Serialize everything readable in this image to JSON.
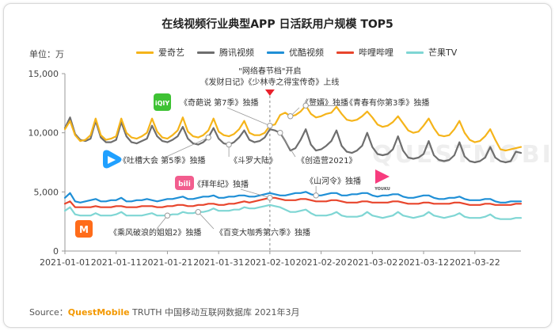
{
  "chart_data": {
    "type": "line",
    "title": "在线视频行业典型APP 日活跃用户规模 TOP5",
    "unit_label": "单位：万",
    "ylim": [
      0,
      15000
    ],
    "y_ticks": [
      "15,000",
      "10,000",
      "5,000",
      "0"
    ],
    "x_ticks": [
      "2021-01-01",
      "2021-01-11",
      "2021-01-21",
      "2021-01-31",
      "2021-02-10",
      "2021-02-20",
      "2021-03-02",
      "2021-03-12",
      "2021-03-22"
    ],
    "x_start": "2021-01-01",
    "x_end": "2021-03-31",
    "grid": false,
    "legend_position": "top",
    "series": [
      {
        "name": "爱奇艺",
        "color": "#f5b41a",
        "values": [
          10300,
          11000,
          9800,
          9300,
          9400,
          9800,
          11200,
          9800,
          9400,
          9500,
          9700,
          11200,
          10000,
          9600,
          9500,
          9700,
          10000,
          11200,
          10100,
          9600,
          9500,
          9800,
          10200,
          11300,
          10100,
          9700,
          9600,
          9800,
          10200,
          11200,
          10100,
          9800,
          9700,
          9900,
          10300,
          11000,
          10000,
          9800,
          9800,
          10000,
          10600,
          10700,
          11500,
          11700,
          11400,
          11500,
          11800,
          12300,
          11600,
          11300,
          11400,
          11600,
          11700,
          12200,
          11600,
          11100,
          11000,
          11100,
          11400,
          11800,
          11300,
          10700,
          10500,
          10600,
          10900,
          11400,
          10800,
          10200,
          10000,
          10100,
          10600,
          11200,
          10400,
          9800,
          9700,
          9800,
          10300,
          11000,
          10000,
          9400,
          9200,
          9300,
          9700,
          10300,
          9400,
          8600,
          8500,
          8600,
          8700,
          8800
        ]
      },
      {
        "name": "腾讯视频",
        "color": "#6e6e6e",
        "values": [
          10400,
          11300,
          9900,
          9400,
          9300,
          9500,
          11000,
          9600,
          9200,
          9200,
          9400,
          10900,
          9700,
          9200,
          9100,
          9300,
          9500,
          10600,
          9700,
          9300,
          9200,
          9400,
          9700,
          10500,
          9500,
          9100,
          9000,
          9200,
          9600,
          10400,
          9500,
          9100,
          9000,
          9200,
          9600,
          10200,
          9400,
          9200,
          9300,
          9600,
          10300,
          10200,
          10000,
          9300,
          8500,
          8700,
          9400,
          10300,
          9000,
          8500,
          8600,
          8900,
          9300,
          10200,
          8900,
          8400,
          8300,
          8500,
          8900,
          10000,
          8800,
          8200,
          8100,
          8200,
          8600,
          9700,
          8500,
          7900,
          7800,
          7900,
          8200,
          9300,
          8100,
          7700,
          7600,
          7700,
          8100,
          9200,
          8000,
          7600,
          7500,
          7600,
          7900,
          8800,
          7900,
          7600,
          7500,
          7600,
          8400,
          8300
        ]
      },
      {
        "name": "优酷视频",
        "color": "#1f8fd6",
        "values": [
          4500,
          4900,
          4200,
          4100,
          4200,
          4300,
          4400,
          4200,
          4200,
          4300,
          4300,
          4500,
          4200,
          4200,
          4300,
          4300,
          4400,
          4300,
          4200,
          4300,
          4400,
          4400,
          4500,
          4600,
          4400,
          4400,
          4500,
          4600,
          4600,
          4700,
          4500,
          4500,
          4600,
          4600,
          4700,
          4700,
          4600,
          4600,
          4700,
          4800,
          4900,
          4800,
          4700,
          4700,
          4800,
          4900,
          4900,
          5000,
          4800,
          4700,
          4700,
          4800,
          4900,
          4900,
          4700,
          4700,
          4800,
          4800,
          4900,
          4900,
          4700,
          4600,
          4700,
          4700,
          4800,
          4800,
          4600,
          4500,
          4500,
          4600,
          4700,
          4700,
          4500,
          4400,
          4400,
          4500,
          4500,
          4600,
          4400,
          4300,
          4300,
          4300,
          4400,
          4400,
          4200,
          4100,
          4100,
          4200,
          4200,
          4200
        ]
      },
      {
        "name": "哔哩哔哩",
        "color": "#e8452c",
        "values": [
          4000,
          4200,
          3700,
          3700,
          3700,
          3700,
          3800,
          3700,
          3700,
          3700,
          3800,
          3800,
          3700,
          3700,
          3700,
          3800,
          3800,
          3800,
          3700,
          3700,
          3800,
          3800,
          3900,
          3900,
          3800,
          3800,
          3900,
          3900,
          4000,
          4000,
          3900,
          3900,
          4000,
          4000,
          4100,
          4200,
          4100,
          4200,
          4300,
          4400,
          4500,
          4500,
          4400,
          4300,
          4300,
          4300,
          4400,
          4400,
          4300,
          4200,
          4200,
          4200,
          4300,
          4300,
          4200,
          4100,
          4100,
          4100,
          4200,
          4200,
          4100,
          4100,
          4100,
          4100,
          4200,
          4200,
          4100,
          4000,
          4000,
          4000,
          4100,
          4100,
          4000,
          4000,
          4000,
          4000,
          4100,
          4100,
          4000,
          3900,
          3900,
          3900,
          4000,
          4000,
          3900,
          3900,
          3900,
          3900,
          4000,
          4000
        ]
      },
      {
        "name": "芒果TV",
        "color": "#7fd6d4",
        "values": [
          3400,
          3700,
          3100,
          3000,
          3000,
          3000,
          3200,
          3000,
          3000,
          3000,
          3100,
          3300,
          3000,
          3000,
          3000,
          3000,
          3100,
          3200,
          3000,
          3000,
          3000,
          3100,
          3100,
          3300,
          3200,
          3200,
          3300,
          3300,
          3400,
          3600,
          3400,
          3400,
          3400,
          3500,
          3500,
          3700,
          3600,
          3600,
          3700,
          3800,
          3900,
          3800,
          3700,
          3500,
          3300,
          3300,
          3400,
          3500,
          3200,
          3000,
          3000,
          3000,
          3100,
          3300,
          3000,
          2900,
          2900,
          2900,
          3000,
          3300,
          3000,
          2900,
          2800,
          2900,
          3000,
          3300,
          3000,
          2900,
          2800,
          2900,
          3000,
          3300,
          3000,
          2900,
          2800,
          2900,
          3000,
          3200,
          2900,
          2800,
          2800,
          2800,
          2900,
          3100,
          2800,
          2700,
          2700,
          2700,
          2800,
          2800
        ]
      }
    ],
    "event_date": "2021-02-10",
    "event_label_line1": "\"网络春节档\"开启",
    "event_label_line2": "《发财日记》《少林寺之得宝传奇》上线",
    "annotations": [
      {
        "id": "qiyi-1",
        "text": "《奇葩说 第7季》独播",
        "day": 40,
        "series": 0
      },
      {
        "id": "qiyi-2",
        "text": "《赘婿》独播",
        "day": 44,
        "series": 0
      },
      {
        "id": "qiyi-3",
        "text": "《青春有你第3季》独播",
        "day": 47,
        "series": 0
      },
      {
        "id": "tx-1",
        "text": "《吐槽大会 第5季》独播",
        "day": 28,
        "series": 1
      },
      {
        "id": "tx-2",
        "text": "《斗罗大陆》",
        "day": 32,
        "series": 1
      },
      {
        "id": "tx-3",
        "text": "《创造营2021》",
        "day": 42,
        "series": 1
      },
      {
        "id": "bili-1",
        "text": "《拜年纪》独播",
        "day": 40,
        "series": 3
      },
      {
        "id": "yk-1",
        "text": "《山河令》独播",
        "day": 49,
        "series": 2
      },
      {
        "id": "mg-1",
        "text": "《乘风破浪的姐姐2》独播",
        "day": 20,
        "series": 4
      },
      {
        "id": "mg-2",
        "text": "《百变大咖秀第六季》独播",
        "day": 26,
        "series": 4
      }
    ],
    "watermark": "QUESTMOBILE"
  },
  "logos": {
    "iqiyi": {
      "text": "iQIY",
      "color": "#3ec234"
    },
    "tencent": {
      "color": "#20a0ff"
    },
    "bilibili": {
      "text": "bili",
      "color": "#f25d8e"
    },
    "youku": {
      "text": "YOUKU",
      "color": "#f73c7e"
    },
    "mango": {
      "text": "M",
      "color": "#ff6c1a"
    }
  },
  "source": {
    "prefix": "Source：",
    "brand": "QuestMobile",
    "rest": " TRUTH 中国移动互联网数据库 2021年3月"
  }
}
